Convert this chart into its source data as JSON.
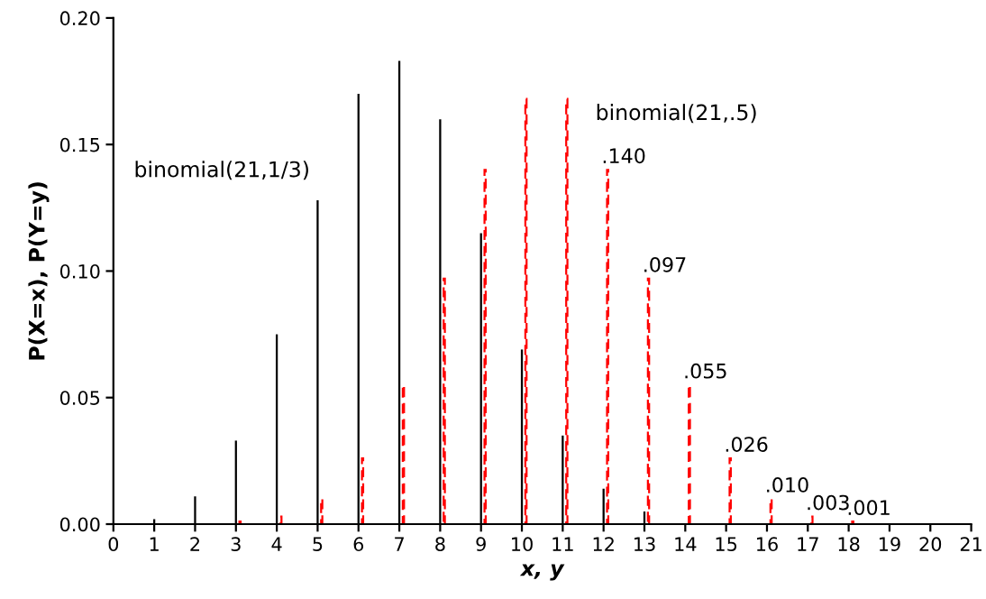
{
  "chart_data": {
    "type": "bar",
    "xlabel": "x, y",
    "ylabel": "P(X=x), P(Y=y)",
    "xlim": [
      0,
      21
    ],
    "xticks": [
      0,
      1,
      2,
      3,
      4,
      5,
      6,
      7,
      8,
      9,
      10,
      11,
      12,
      13,
      14,
      15,
      16,
      17,
      18,
      19,
      20,
      21
    ],
    "ylim": [
      0,
      0.2
    ],
    "yticks": [
      {
        "value": 0,
        "label": "0.00"
      },
      {
        "value": 0.05,
        "label": "0.05"
      },
      {
        "value": 0.1,
        "label": "0.10"
      },
      {
        "value": 0.15,
        "label": "0.15"
      },
      {
        "value": 0.2,
        "label": "0.20"
      }
    ],
    "grid": false,
    "legend": false,
    "series": [
      {
        "name": "binomial(21,1/3)",
        "color": "#000000",
        "line_style": "solid",
        "x": [
          1,
          2,
          3,
          4,
          5,
          6,
          7,
          8,
          9,
          10,
          11,
          12,
          13
        ],
        "values": [
          0.002,
          0.011,
          0.033,
          0.075,
          0.128,
          0.17,
          0.183,
          0.16,
          0.115,
          0.069,
          0.035,
          0.014,
          0.005
        ]
      },
      {
        "name": "binomial(21,.5)",
        "color": "#ff0000",
        "line_style": "dashed",
        "x": [
          3.1,
          4.1,
          5.1,
          6.1,
          7.1,
          8.1,
          9.1,
          10.1,
          11.1,
          12.1,
          13.1,
          14.1,
          15.1,
          16.1,
          17.1,
          18.1
        ],
        "values": [
          0.001,
          0.003,
          0.01,
          0.026,
          0.055,
          0.097,
          0.14,
          0.168,
          0.168,
          0.14,
          0.097,
          0.055,
          0.026,
          0.01,
          0.003,
          0.001
        ],
        "value_labels": [
          null,
          null,
          null,
          null,
          null,
          null,
          null,
          null,
          null,
          ".140",
          ".097",
          ".055",
          ".026",
          ".010",
          ".003",
          ".001"
        ]
      }
    ]
  }
}
